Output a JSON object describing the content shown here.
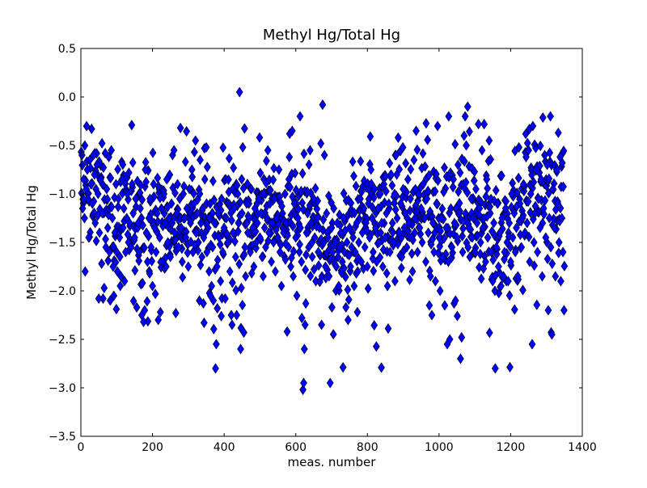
{
  "chart_data": {
    "type": "scatter",
    "title": "Methyl Hg/Total Hg",
    "xlabel": "meas. number",
    "ylabel": "Methyl Hg/Total Hg",
    "xlim": [
      0,
      1400
    ],
    "ylim": [
      -3.5,
      0.5
    ],
    "xticks": [
      0,
      200,
      400,
      600,
      800,
      1000,
      1200,
      1400
    ],
    "xtick_labels": [
      "0",
      "200",
      "400",
      "600",
      "800",
      "1000",
      "1200",
      "1400"
    ],
    "yticks": [
      -3.5,
      -3.0,
      -2.5,
      -2.0,
      -1.5,
      -1.0,
      -0.5,
      0.0,
      0.5
    ],
    "ytick_labels": [
      "−3.5",
      "−3.0",
      "−2.5",
      "−2.0",
      "−1.5",
      "−1.0",
      "−0.5",
      "0.0",
      "0.5"
    ],
    "grid": false,
    "marker": "diamond",
    "marker_color": "#0000ff",
    "marker_edge_color": "#000000",
    "n_points": 1350,
    "points": [
      [
        5,
        -1.15
      ],
      [
        8,
        -0.85
      ],
      [
        10,
        -1.25
      ],
      [
        12,
        -1.8
      ],
      [
        15,
        -0.95
      ],
      [
        18,
        -0.75
      ],
      [
        20,
        -1.05
      ],
      [
        22,
        -1.45
      ],
      [
        25,
        -0.65
      ],
      [
        28,
        -0.9
      ],
      [
        30,
        -0.33
      ],
      [
        32,
        -1.1
      ],
      [
        35,
        -0.6
      ],
      [
        38,
        -0.8
      ],
      [
        40,
        -1.3
      ],
      [
        42,
        -0.95
      ],
      [
        45,
        -0.7
      ],
      [
        48,
        -1.0
      ],
      [
        50,
        -2.08
      ],
      [
        52,
        -1.4
      ],
      [
        55,
        -0.85
      ],
      [
        58,
        -1.72
      ],
      [
        60,
        -1.2
      ],
      [
        62,
        -2.08
      ],
      [
        65,
        -1.97
      ],
      [
        68,
        -0.58
      ],
      [
        70,
        -1.55
      ],
      [
        72,
        -0.95
      ],
      [
        75,
        -1.35
      ],
      [
        78,
        -0.62
      ],
      [
        80,
        -1.6
      ],
      [
        82,
        -2.1
      ],
      [
        85,
        -0.55
      ],
      [
        88,
        -1.25
      ],
      [
        90,
        -1.75
      ],
      [
        92,
        -2.05
      ],
      [
        95,
        -1.4
      ],
      [
        98,
        -0.9
      ],
      [
        100,
        -1.6
      ],
      [
        102,
        -1.8
      ],
      [
        105,
        -1.05
      ],
      [
        108,
        -1.45
      ],
      [
        110,
        -1.95
      ],
      [
        112,
        -1.85
      ],
      [
        115,
        -0.85
      ],
      [
        118,
        -1.35
      ],
      [
        120,
        -1.15
      ],
      [
        122,
        -1.9
      ],
      [
        125,
        -1.6
      ],
      [
        128,
        -1.25
      ],
      [
        130,
        -1.0
      ],
      [
        133,
        -1.5
      ],
      [
        136,
        -1.3
      ],
      [
        140,
        -1.55
      ],
      [
        143,
        -0.9
      ],
      [
        146,
        -1.2
      ],
      [
        150,
        -1.45
      ],
      [
        153,
        -1.05
      ],
      [
        156,
        -2.17
      ],
      [
        160,
        -1.3
      ],
      [
        163,
        -1.6
      ],
      [
        166,
        -1.15
      ],
      [
        170,
        -2.25
      ],
      [
        172,
        -1.92
      ],
      [
        175,
        -2.32
      ],
      [
        178,
        -2.2
      ],
      [
        180,
        -0.75
      ],
      [
        183,
        -1.4
      ],
      [
        186,
        -1.7
      ],
      [
        190,
        -1.25
      ],
      [
        193,
        -1.05
      ],
      [
        196,
        -1.55
      ],
      [
        200,
        -1.95
      ],
      [
        203,
        -0.9
      ],
      [
        206,
        -1.35
      ],
      [
        210,
        -1.6
      ],
      [
        213,
        -1.2
      ],
      [
        216,
        -2.3
      ],
      [
        220,
        -1.45
      ],
      [
        222,
        -2.22
      ],
      [
        225,
        -1.15
      ],
      [
        228,
        -1.7
      ],
      [
        232,
        -1.0
      ],
      [
        235,
        -1.3
      ],
      [
        238,
        -1.75
      ],
      [
        240,
        -0.85
      ],
      [
        243,
        -1.5
      ],
      [
        246,
        -1.25
      ],
      [
        250,
        -1.65
      ],
      [
        253,
        -1.1
      ],
      [
        256,
        -0.6
      ],
      [
        260,
        -0.55
      ],
      [
        262,
        -1.4
      ],
      [
        265,
        -2.23
      ],
      [
        268,
        -1.2
      ],
      [
        270,
        -0.9
      ],
      [
        273,
        -1.55
      ],
      [
        276,
        -1.05
      ],
      [
        280,
        -1.35
      ],
      [
        283,
        -1.7
      ],
      [
        286,
        -1.0
      ],
      [
        290,
        -1.25
      ],
      [
        293,
        -1.45
      ],
      [
        296,
        -1.15
      ],
      [
        300,
        -1.75
      ],
      [
        303,
        -0.95
      ],
      [
        306,
        -1.3
      ],
      [
        310,
        -0.75
      ],
      [
        313,
        -1.6
      ],
      [
        316,
        -1.1
      ],
      [
        320,
        -0.45
      ],
      [
        322,
        -1.4
      ],
      [
        325,
        -1.2
      ],
      [
        328,
        -1.5
      ],
      [
        332,
        -1.0
      ],
      [
        335,
        -1.3
      ],
      [
        338,
        -1.65
      ],
      [
        340,
        -1.15
      ],
      [
        343,
        -1.45
      ],
      [
        346,
        -0.85
      ],
      [
        350,
        -0.52
      ],
      [
        352,
        -1.6
      ],
      [
        355,
        -1.35
      ],
      [
        358,
        -1.8
      ],
      [
        360,
        -1.25
      ],
      [
        362,
        -2.05
      ],
      [
        365,
        -1.95
      ],
      [
        368,
        -1.55
      ],
      [
        370,
        -2.1
      ],
      [
        373,
        -1.3
      ],
      [
        376,
        -2.8
      ],
      [
        378,
        -2.55
      ],
      [
        380,
        -1.75
      ],
      [
        383,
        -1.2
      ],
      [
        386,
        -1.45
      ],
      [
        390,
        -1.9
      ],
      [
        393,
        -1.05
      ],
      [
        396,
        -1.6
      ],
      [
        400,
        -1.35
      ],
      [
        403,
        -2.08
      ],
      [
        406,
        -1.25
      ],
      [
        410,
        -1.5
      ],
      [
        413,
        -0.98
      ],
      [
        416,
        -1.8
      ],
      [
        420,
        -2.25
      ],
      [
        422,
        -2.35
      ],
      [
        425,
        -1.4
      ],
      [
        428,
        -1.15
      ],
      [
        432,
        -1.65
      ],
      [
        435,
        -2.25
      ],
      [
        438,
        -1.0
      ],
      [
        440,
        -1.3
      ],
      [
        443,
        0.05
      ],
      [
        446,
        -2.6
      ],
      [
        450,
        -1.2
      ],
      [
        452,
        -0.52
      ],
      [
        455,
        -2.43
      ],
      [
        458,
        -1.55
      ],
      [
        460,
        -1.85
      ],
      [
        463,
        -1.1
      ],
      [
        466,
        -1.4
      ],
      [
        470,
        -1.25
      ],
      [
        473,
        -1.6
      ],
      [
        476,
        -0.95
      ],
      [
        480,
        -1.35
      ],
      [
        483,
        -1.75
      ],
      [
        486,
        -1.15
      ],
      [
        490,
        -1.5
      ],
      [
        493,
        -1.3
      ],
      [
        496,
        -1.05
      ],
      [
        500,
        -1.45
      ],
      [
        503,
        -1.2
      ],
      [
        506,
        -1.65
      ],
      [
        510,
        -1.0
      ],
      [
        513,
        -1.35
      ],
      [
        516,
        -1.55
      ],
      [
        520,
        -1.25
      ],
      [
        522,
        -0.55
      ],
      [
        525,
        -1.4
      ],
      [
        528,
        -1.1
      ],
      [
        532,
        -1.7
      ],
      [
        535,
        -1.3
      ],
      [
        538,
        -1.5
      ],
      [
        540,
        -1.05
      ],
      [
        543,
        -1.8
      ],
      [
        546,
        -1.25
      ],
      [
        550,
        -1.45
      ],
      [
        553,
        -0.75
      ],
      [
        556,
        -1.6
      ],
      [
        560,
        -1.95
      ],
      [
        563,
        -1.2
      ],
      [
        566,
        -1.4
      ],
      [
        570,
        -1.0
      ],
      [
        573,
        -1.3
      ],
      [
        576,
        -2.42
      ],
      [
        580,
        -1.55
      ],
      [
        583,
        -0.38
      ],
      [
        586,
        -1.75
      ],
      [
        590,
        -0.35
      ],
      [
        593,
        -1.85
      ],
      [
        596,
        -1.1
      ],
      [
        600,
        -1.45
      ],
      [
        603,
        -2.05
      ],
      [
        606,
        -1.25
      ],
      [
        610,
        -1.6
      ],
      [
        613,
        -1.35
      ],
      [
        616,
        -1.7
      ],
      [
        620,
        -3.02
      ],
      [
        622,
        -2.95
      ],
      [
        624,
        -2.6
      ],
      [
        626,
        -2.35
      ],
      [
        628,
        -2.13
      ],
      [
        630,
        -1.4
      ],
      [
        633,
        -1.2
      ],
      [
        636,
        -1.55
      ],
      [
        640,
        -0.55
      ],
      [
        643,
        -1.3
      ],
      [
        646,
        -1.65
      ],
      [
        650,
        -1.05
      ],
      [
        653,
        -1.45
      ],
      [
        656,
        -1.9
      ],
      [
        660,
        -1.25
      ],
      [
        663,
        -1.6
      ],
      [
        666,
        -1.35
      ],
      [
        670,
        -0.48
      ],
      [
        672,
        -2.35
      ],
      [
        675,
        -0.08
      ],
      [
        678,
        -1.5
      ],
      [
        680,
        -0.6
      ],
      [
        683,
        -1.75
      ],
      [
        686,
        -1.2
      ],
      [
        690,
        -1.45
      ],
      [
        693,
        -1.85
      ],
      [
        696,
        -2.95
      ],
      [
        700,
        -1.35
      ],
      [
        703,
        -1.6
      ],
      [
        706,
        -1.15
      ],
      [
        710,
        -1.5
      ],
      [
        713,
        -1.75
      ],
      [
        716,
        -1.3
      ],
      [
        720,
        -1.95
      ],
      [
        723,
        -1.55
      ],
      [
        726,
        -1.4
      ],
      [
        730,
        -1.7
      ],
      [
        733,
        -1.25
      ],
      [
        736,
        -1.6
      ],
      [
        740,
        -2.17
      ],
      [
        743,
        -1.5
      ],
      [
        746,
        -2.3
      ],
      [
        750,
        -1.35
      ],
      [
        753,
        -1.75
      ],
      [
        756,
        -1.55
      ],
      [
        760,
        -1.45
      ],
      [
        763,
        -1.95
      ],
      [
        766,
        -1.6
      ],
      [
        770,
        -1.3
      ],
      [
        773,
        -1.8
      ],
      [
        776,
        -1.5
      ],
      [
        780,
        -1.05
      ],
      [
        783,
        -1.7
      ],
      [
        786,
        -1.4
      ],
      [
        790,
        -1.15
      ],
      [
        793,
        -1.55
      ],
      [
        796,
        -1.3
      ],
      [
        800,
        -1.75
      ],
      [
        803,
        -1.1
      ],
      [
        806,
        -1.45
      ],
      [
        810,
        -0.75
      ],
      [
        813,
        -1.25
      ],
      [
        816,
        -1.6
      ],
      [
        820,
        -0.95
      ],
      [
        823,
        -1.35
      ],
      [
        826,
        -1.7
      ],
      [
        830,
        -1.15
      ],
      [
        833,
        -1.5
      ],
      [
        836,
        -1.0
      ],
      [
        840,
        -1.3
      ],
      [
        843,
        -1.75
      ],
      [
        846,
        -0.9
      ],
      [
        850,
        -1.45
      ],
      [
        853,
        -1.2
      ],
      [
        856,
        -1.95
      ],
      [
        860,
        -1.1
      ],
      [
        863,
        -1.6
      ],
      [
        866,
        -0.8
      ],
      [
        870,
        -1.3
      ],
      [
        873,
        -1.5
      ],
      [
        876,
        -1.0
      ],
      [
        880,
        -0.6
      ],
      [
        883,
        -1.25
      ],
      [
        886,
        -0.42
      ],
      [
        890,
        -1.4
      ],
      [
        893,
        -1.1
      ],
      [
        896,
        -1.65
      ],
      [
        900,
        -0.95
      ],
      [
        903,
        -1.35
      ],
      [
        906,
        -1.2
      ],
      [
        910,
        -1.55
      ],
      [
        913,
        -0.85
      ],
      [
        916,
        -1.3
      ],
      [
        920,
        -1.05
      ],
      [
        923,
        -1.45
      ],
      [
        926,
        -1.8
      ],
      [
        930,
        -0.65
      ],
      [
        933,
        -1.25
      ],
      [
        936,
        -0.35
      ],
      [
        940,
        -1.6
      ],
      [
        943,
        -1.0
      ],
      [
        946,
        -1.35
      ],
      [
        950,
        -1.15
      ],
      [
        953,
        -1.5
      ],
      [
        956,
        -0.9
      ],
      [
        960,
        -1.25
      ],
      [
        963,
        -1.7
      ],
      [
        966,
        -1.05
      ],
      [
        970,
        -1.4
      ],
      [
        973,
        -2.15
      ],
      [
        976,
        -1.85
      ],
      [
        980,
        -2.25
      ],
      [
        983,
        -1.3
      ],
      [
        986,
        -1.6
      ],
      [
        990,
        -1.9
      ],
      [
        993,
        -1.1
      ],
      [
        996,
        -0.3
      ],
      [
        1000,
        -1.45
      ],
      [
        1003,
        -2.0
      ],
      [
        1006,
        -1.25
      ],
      [
        1010,
        -1.65
      ],
      [
        1013,
        -0.98
      ],
      [
        1016,
        -2.15
      ],
      [
        1020,
        -1.35
      ],
      [
        1023,
        -2.55
      ],
      [
        1026,
        -1.7
      ],
      [
        1030,
        -2.5
      ],
      [
        1033,
        -1.15
      ],
      [
        1036,
        -1.55
      ],
      [
        1040,
        -0.85
      ],
      [
        1043,
        -1.3
      ],
      [
        1046,
        -2.1
      ],
      [
        1050,
        -1.45
      ],
      [
        1053,
        -0.7
      ],
      [
        1056,
        -1.2
      ],
      [
        1060,
        -2.7
      ],
      [
        1063,
        -2.48
      ],
      [
        1066,
        -1.6
      ],
      [
        1070,
        -0.4
      ],
      [
        1073,
        -0.2
      ],
      [
        1076,
        -0.5
      ],
      [
        1080,
        -0.1
      ],
      [
        1083,
        -1.35
      ],
      [
        1086,
        -1.65
      ],
      [
        1090,
        -1.05
      ],
      [
        1093,
        -1.45
      ],
      [
        1096,
        -1.25
      ],
      [
        1100,
        -1.6
      ],
      [
        1103,
        -0.95
      ],
      [
        1106,
        -1.3
      ],
      [
        1110,
        -0.28
      ],
      [
        1113,
        -1.15
      ],
      [
        1116,
        -1.5
      ],
      [
        1120,
        -0.55
      ],
      [
        1123,
        -1.35
      ],
      [
        1126,
        -0.28
      ],
      [
        1130,
        -1.7
      ],
      [
        1133,
        -0.85
      ],
      [
        1136,
        -1.45
      ],
      [
        1140,
        -0.45
      ],
      [
        1143,
        -1.2
      ],
      [
        1146,
        -1.6
      ],
      [
        1150,
        -1.9
      ],
      [
        1153,
        -1.3
      ],
      [
        1156,
        -2.0
      ],
      [
        1160,
        -1.55
      ],
      [
        1163,
        -1.1
      ],
      [
        1166,
        -1.75
      ],
      [
        1170,
        -1.4
      ],
      [
        1173,
        -1.95
      ],
      [
        1176,
        -1.25
      ],
      [
        1180,
        -1.85
      ],
      [
        1183,
        -1.6
      ],
      [
        1186,
        -1.15
      ],
      [
        1190,
        -1.5
      ],
      [
        1193,
        -1.9
      ],
      [
        1196,
        -1.3
      ],
      [
        1200,
        -1.7
      ],
      [
        1203,
        -1.0
      ],
      [
        1206,
        -1.45
      ],
      [
        1210,
        -1.2
      ],
      [
        1213,
        -1.6
      ],
      [
        1216,
        -1.35
      ],
      [
        1220,
        -1.85
      ],
      [
        1223,
        -0.52
      ],
      [
        1226,
        -1.1
      ],
      [
        1230,
        -1.55
      ],
      [
        1233,
        -1.25
      ],
      [
        1236,
        -0.9
      ],
      [
        1240,
        -1.4
      ],
      [
        1243,
        -0.62
      ],
      [
        1246,
        -1.3
      ],
      [
        1250,
        -0.55
      ],
      [
        1253,
        -1.7
      ],
      [
        1256,
        -1.0
      ],
      [
        1260,
        -2.55
      ],
      [
        1262,
        -0.3
      ],
      [
        1265,
        -1.5
      ],
      [
        1268,
        -1.2
      ],
      [
        1272,
        -0.75
      ],
      [
        1275,
        -1.6
      ],
      [
        1278,
        -1.05
      ],
      [
        1282,
        -1.35
      ],
      [
        1285,
        -0.85
      ],
      [
        1288,
        -1.85
      ],
      [
        1292,
        -1.15
      ],
      [
        1295,
        -0.6
      ],
      [
        1298,
        -1.45
      ],
      [
        1302,
        -0.7
      ],
      [
        1305,
        -2.2
      ],
      [
        1308,
        -1.25
      ],
      [
        1312,
        -1.55
      ],
      [
        1315,
        -2.45
      ],
      [
        1318,
        -0.95
      ],
      [
        1322,
        -1.35
      ],
      [
        1325,
        -1.85
      ],
      [
        1328,
        -0.75
      ],
      [
        1332,
        -1.1
      ],
      [
        1335,
        -1.5
      ],
      [
        1338,
        -0.62
      ],
      [
        1340,
        -1.9
      ],
      [
        1343,
        -1.25
      ],
      [
        1346,
        -1.6
      ],
      [
        1349,
        -2.2
      ]
    ]
  }
}
